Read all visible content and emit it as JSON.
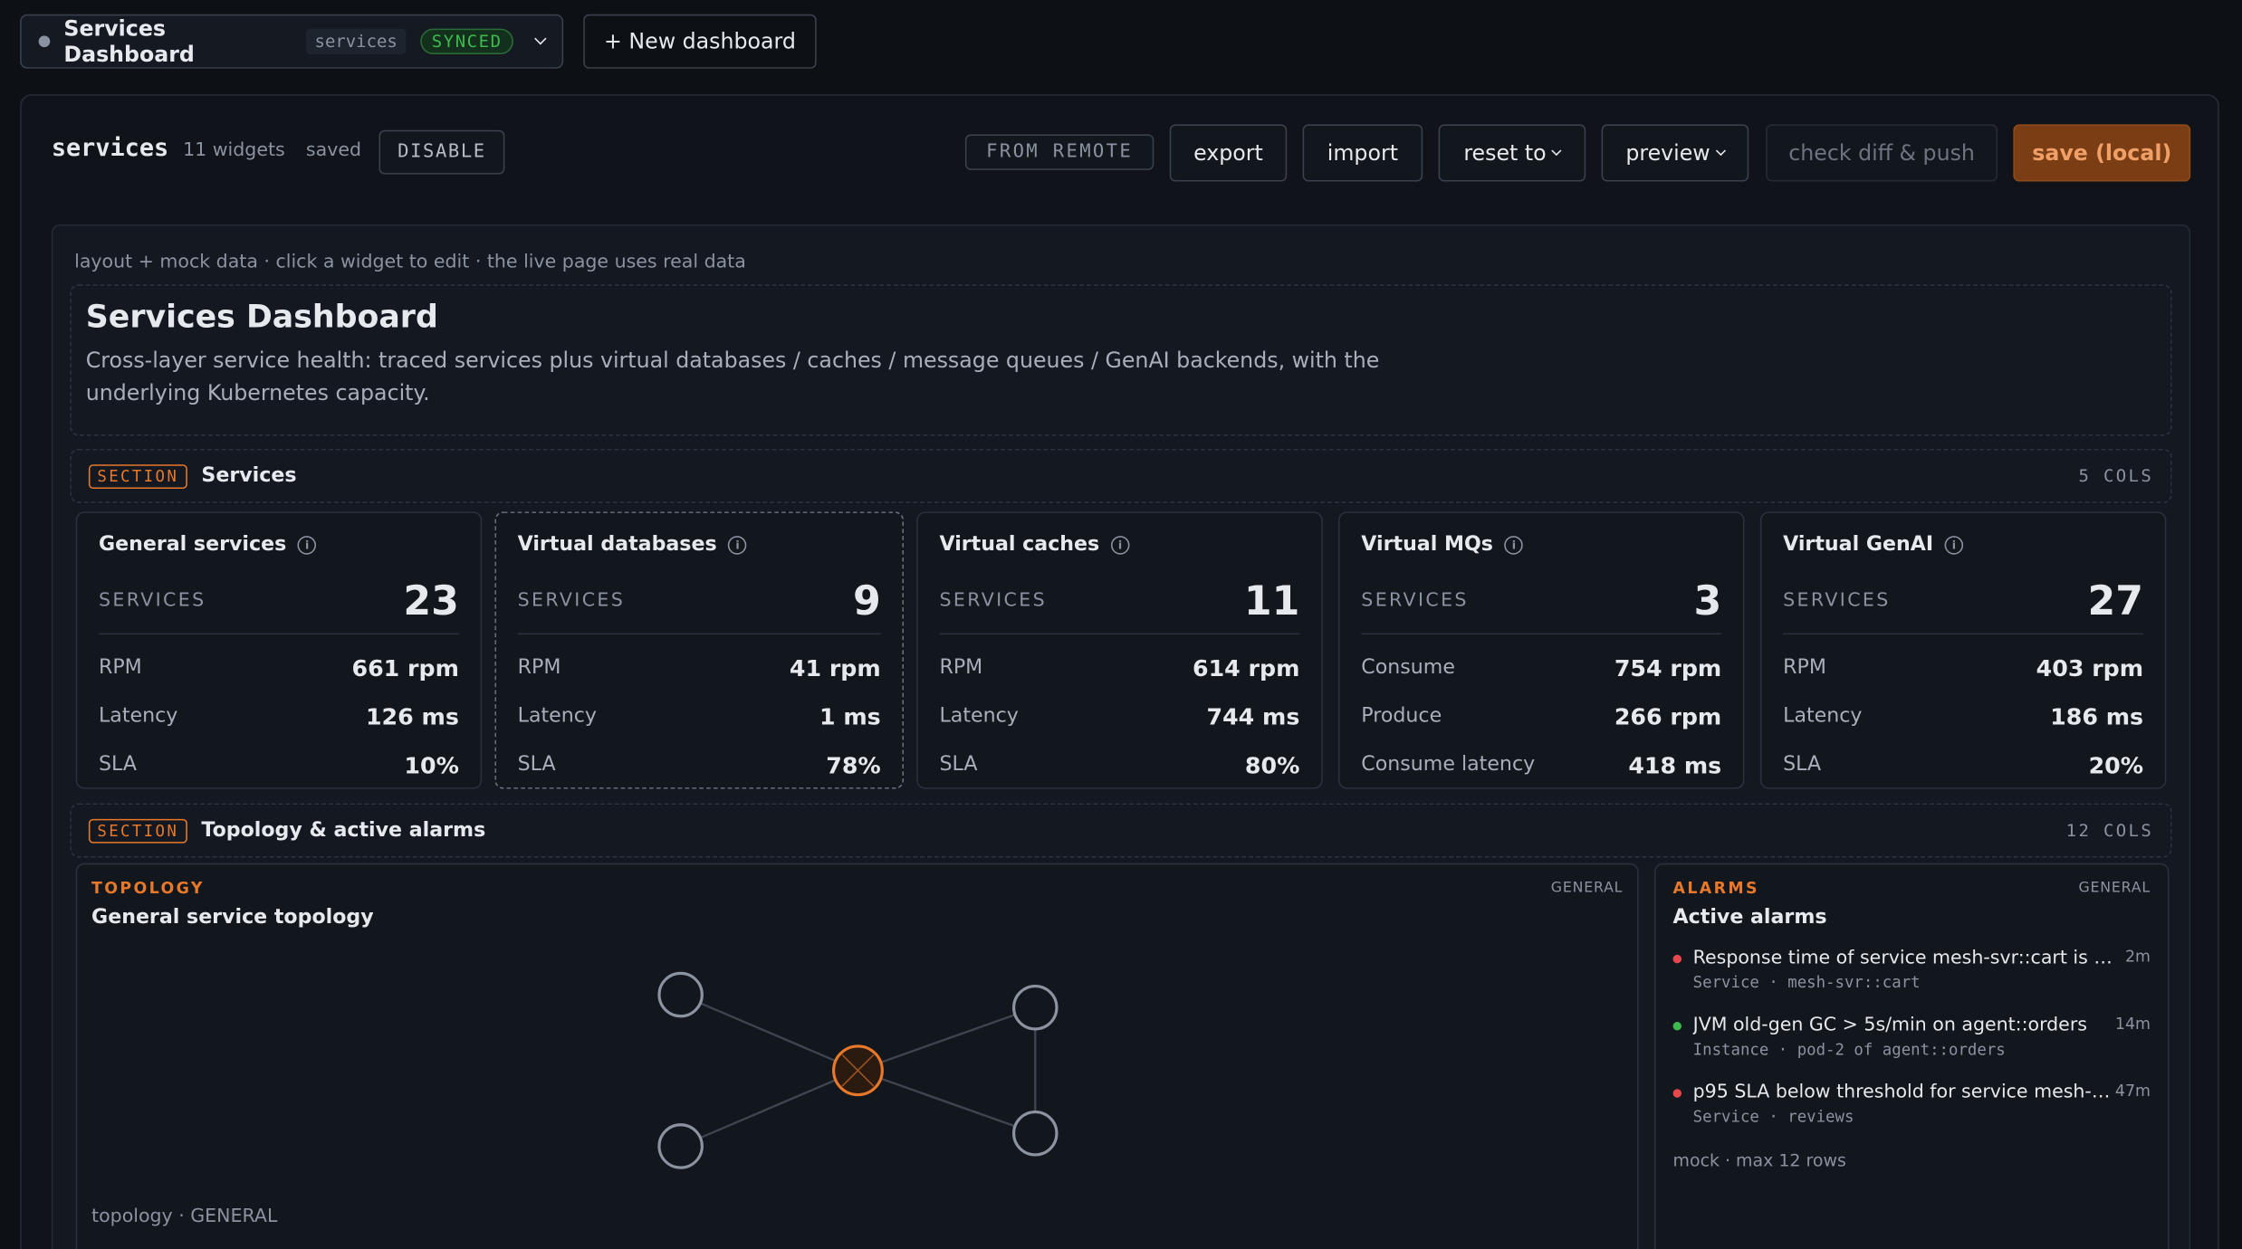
{
  "topbar": {
    "dashboard": "Services Dashboard",
    "tag": "services",
    "status": "SYNCED",
    "new_button": "+ New dashboard"
  },
  "toolbar": {
    "name": "services",
    "widgets": "11 widgets",
    "state": "saved",
    "disable": "DISABLE",
    "origin": "FROM REMOTE",
    "buttons": [
      "export",
      "import",
      "reset to",
      "preview"
    ],
    "diff": "check diff & push",
    "save": "save (local)"
  },
  "canvas": {
    "hint": "layout + mock data · click a widget to edit · the live page uses real data",
    "header": {
      "title": "Services Dashboard",
      "description": "Cross-layer service health: traced services plus virtual databases / caches / message queues / GenAI backends, with the underlying Kubernetes capacity."
    },
    "sections": [
      {
        "badge": "SECTION",
        "name": "Services",
        "cols": "5 COLS",
        "widgets": [
          {
            "title": "General services",
            "kpi_label": "SERVICES",
            "kpi": "23",
            "rows": [
              [
                "RPM",
                "661 rpm"
              ],
              [
                "Latency",
                "126 ms"
              ],
              [
                "SLA",
                "10%"
              ]
            ]
          },
          {
            "title": "Virtual databases",
            "kpi_label": "SERVICES",
            "kpi": "9",
            "rows": [
              [
                "RPM",
                "41 rpm"
              ],
              [
                "Latency",
                "1 ms"
              ],
              [
                "SLA",
                "78%"
              ]
            ]
          },
          {
            "title": "Virtual caches",
            "kpi_label": "SERVICES",
            "kpi": "11",
            "rows": [
              [
                "RPM",
                "614 rpm"
              ],
              [
                "Latency",
                "744 ms"
              ],
              [
                "SLA",
                "80%"
              ]
            ]
          },
          {
            "title": "Virtual MQs",
            "kpi_label": "SERVICES",
            "kpi": "3",
            "rows": [
              [
                "Consume",
                "754 rpm"
              ],
              [
                "Produce",
                "266 rpm"
              ],
              [
                "Consume latency",
                "418 ms"
              ]
            ]
          },
          {
            "title": "Virtual GenAI",
            "kpi_label": "SERVICES",
            "kpi": "27",
            "rows": [
              [
                "RPM",
                "403 rpm"
              ],
              [
                "Latency",
                "186 ms"
              ],
              [
                "SLA",
                "20%"
              ]
            ]
          }
        ]
      },
      {
        "badge": "SECTION",
        "name": "Topology & active alarms",
        "cols": "12 COLS",
        "topology": {
          "kind": "TOPOLOGY",
          "scope": "GENERAL",
          "title": "General service topology",
          "footer": "topology · GENERAL"
        },
        "alarms": {
          "kind": "ALARMS",
          "scope": "GENERAL",
          "title": "Active alarms",
          "footer": "mock · max 12 rows",
          "items": [
            {
              "message": "Response time of service mesh-svr::cart is …",
              "meta": "Service · mesh-svr::cart",
              "age": "2m",
              "color": "#e5484d"
            },
            {
              "message": "JVM old-gen GC > 5s/min on agent::orders",
              "meta": "Instance · pod-2 of agent::orders",
              "age": "14m",
              "color": "#3fb950"
            },
            {
              "message": "p95 SLA below threshold for service mesh-…",
              "meta": "Service · reviews",
              "age": "47m",
              "color": "#e5484d"
            }
          ]
        }
      }
    ]
  }
}
